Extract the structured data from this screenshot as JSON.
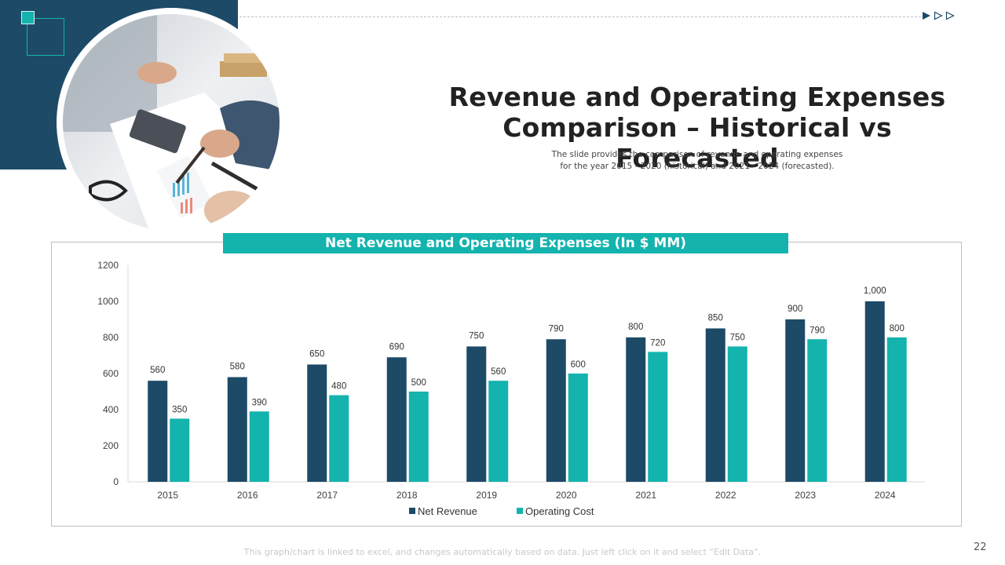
{
  "slide": {
    "title_line1": "Revenue and Operating Expenses",
    "title_line2": "Comparison – Historical vs Forecasted",
    "subtitle_line1": "The slide provides  the comparison  of revenue  and operating  expenses",
    "subtitle_line2": "for the year 2015 - 2020 (historical) and 2021 - 2024 (forecasted).",
    "chart_banner": "Net Revenue and Operating Expenses (In $ MM)",
    "footer_note": "This graph/chart is linked to excel,  and changes automatically based on data. Just left click on it and select “Edit Data”.",
    "page_number": "22",
    "photo_icon": "business-meeting-photo",
    "nav_icons": [
      "play-filled-icon",
      "play-outline-icon",
      "play-outline-icon"
    ]
  },
  "colors": {
    "navy": "#1d4a67",
    "teal": "#14b3ad"
  },
  "chart_data": {
    "type": "bar",
    "title": "Net Revenue and Operating Expenses (In $ MM)",
    "xlabel": "",
    "ylabel": "",
    "categories": [
      "2015",
      "2016",
      "2017",
      "2018",
      "2019",
      "2020",
      "2021",
      "2022",
      "2023",
      "2024"
    ],
    "series": [
      {
        "name": "Net Revenue",
        "color": "#1d4a67",
        "values": [
          560,
          580,
          650,
          690,
          750,
          790,
          800,
          850,
          900,
          1000
        ],
        "labels": [
          "560",
          "580",
          "650",
          "690",
          "750",
          "790",
          "800",
          "850",
          "900",
          "1,000"
        ]
      },
      {
        "name": "Operating Cost",
        "color": "#14b3ad",
        "values": [
          350,
          390,
          480,
          500,
          560,
          600,
          720,
          750,
          790,
          800
        ],
        "labels": [
          "350",
          "390",
          "480",
          "500",
          "560",
          "600",
          "720",
          "750",
          "790",
          "800"
        ]
      }
    ],
    "ylim": [
      0,
      1200
    ],
    "yticks": [
      0,
      200,
      400,
      600,
      800,
      1000,
      1200
    ],
    "grid": false,
    "legend": "bottom"
  }
}
